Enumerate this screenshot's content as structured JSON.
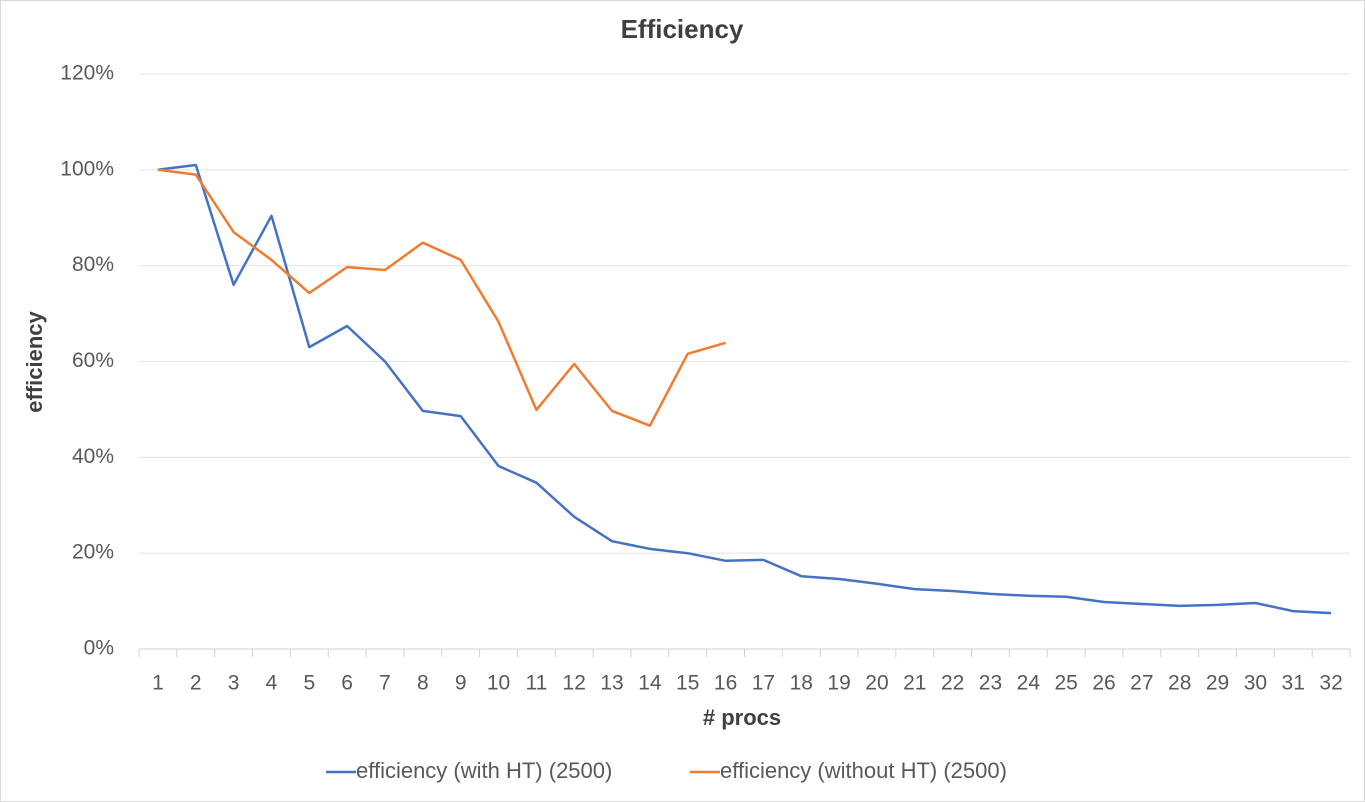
{
  "chart_data": {
    "type": "line",
    "title": "Efficiency",
    "x_label": "# procs",
    "y_label": "efficiency",
    "categories": [
      "1",
      "2",
      "3",
      "4",
      "5",
      "6",
      "7",
      "8",
      "9",
      "10",
      "11",
      "12",
      "13",
      "14",
      "15",
      "16",
      "17",
      "18",
      "19",
      "20",
      "21",
      "22",
      "23",
      "24",
      "25",
      "26",
      "27",
      "28",
      "29",
      "30",
      "31",
      "32"
    ],
    "series": [
      {
        "name": "efficiency (with HT) (2500)",
        "color": "#4472c4",
        "values": [
          100,
          101,
          76,
          90.4,
          63,
          67.4,
          60,
          49.7,
          48.6,
          38.2,
          34.7,
          27.6,
          22.5,
          20.9,
          20,
          18.4,
          18.6,
          15.2,
          14.6,
          13.6,
          12.5,
          12.1,
          11.5,
          11.1,
          10.9,
          9.8,
          9.4,
          9,
          9.2,
          9.6,
          7.9,
          7.5
        ]
      },
      {
        "name": "efficiency (without HT) (2500)",
        "color": "#ed7d31",
        "values": [
          100,
          99,
          87,
          81.2,
          74.3,
          79.7,
          79.1,
          84.8,
          81.2,
          68.3,
          49.9,
          59.5,
          49.7,
          46.6,
          61.6,
          63.9,
          null,
          null,
          null,
          null,
          null,
          null,
          null,
          null,
          null,
          null,
          null,
          null,
          null,
          null,
          null,
          null
        ]
      }
    ],
    "ylim": [
      0,
      120
    ],
    "yticks": [
      {
        "value": 0,
        "label": "0%"
      },
      {
        "value": 20,
        "label": "20%"
      },
      {
        "value": 40,
        "label": "40%"
      },
      {
        "value": 60,
        "label": "60%"
      },
      {
        "value": 80,
        "label": "80%"
      },
      {
        "value": 100,
        "label": "100%"
      },
      {
        "value": 120,
        "label": "120%"
      }
    ],
    "grid": true,
    "legend": "bottom"
  }
}
